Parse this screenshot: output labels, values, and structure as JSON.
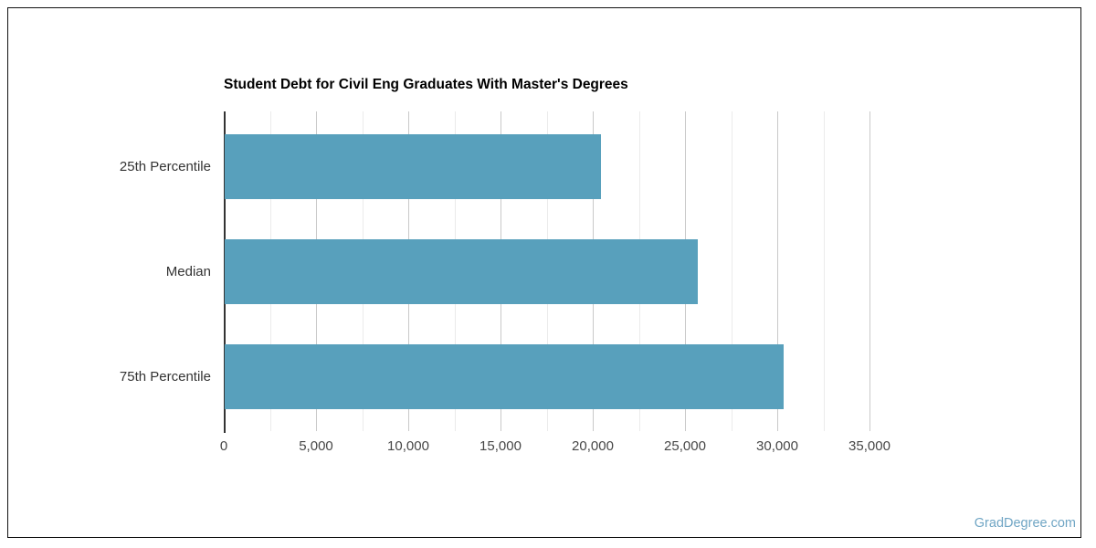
{
  "page": {
    "watermark": "GradDegree.com",
    "watermark_color": "#6FA5C4",
    "card_border_color": "#111111",
    "background_color": "#ffffff"
  },
  "chart_data": {
    "type": "bar",
    "orientation": "horizontal",
    "title": "Student Debt for Civil Eng Graduates With Master's Degrees",
    "categories": [
      "25th Percentile",
      "Median",
      "75th Percentile"
    ],
    "values": [
      20400,
      25650,
      30300
    ],
    "xlabel": "",
    "ylabel": "",
    "xlim": [
      0,
      35000
    ],
    "x_tick_step": 5000,
    "x_minor_step": 2500,
    "x_tick_labels": [
      "0",
      "5,000",
      "10,000",
      "15,000",
      "20,000",
      "25,000",
      "30,000",
      "35,000"
    ],
    "grid": true,
    "legend": false,
    "bar_color": "#58A0BC",
    "axis_line_color": "#333333",
    "major_grid_color": "#c9c9c9",
    "minor_grid_color": "#ebebeb"
  }
}
